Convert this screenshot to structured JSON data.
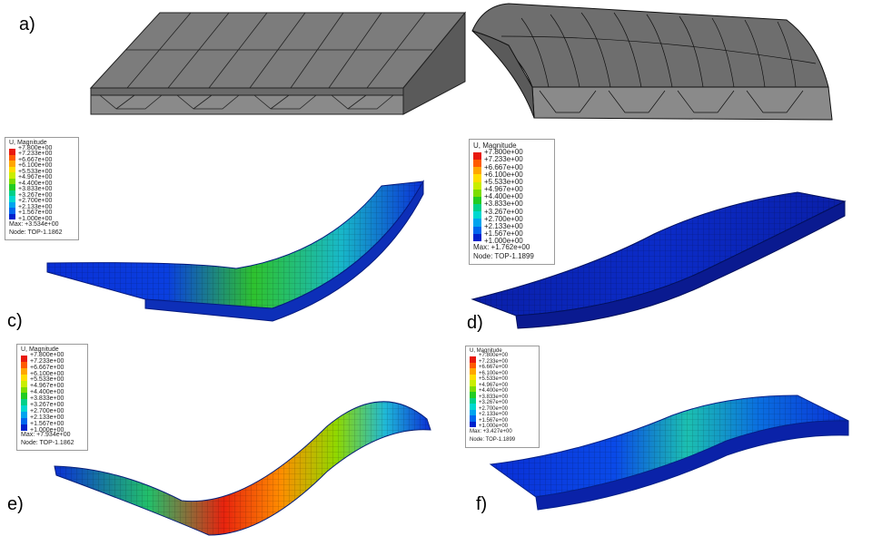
{
  "panels": [
    {
      "label": "a)"
    },
    {
      "label": "b)"
    },
    {
      "label": "c)"
    },
    {
      "label": "d)"
    },
    {
      "label": "e)"
    },
    {
      "label": "f)"
    }
  ],
  "legend_title": "U, Magnitude",
  "legend_values": [
    "+7.800e+00",
    "+7.233e+00",
    "+6.667e+00",
    "+6.100e+00",
    "+5.533e+00",
    "+4.967e+00",
    "+4.400e+00",
    "+3.833e+00",
    "+3.267e+00",
    "+2.700e+00",
    "+2.133e+00",
    "+1.567e+00",
    "+1.000e+00"
  ],
  "legend_colors": [
    "#e8190d",
    "#ff5a00",
    "#ffa600",
    "#ffdd00",
    "#c9ee00",
    "#7cdd00",
    "#22cc22",
    "#00d088",
    "#00d8d0",
    "#00a4ee",
    "#0066ee",
    "#0022cc"
  ],
  "legends": [
    {
      "panel": "c",
      "max": "Max: +3.534e+00",
      "node": "Node: TOP-1.1862"
    },
    {
      "panel": "d",
      "max": "Max: +1.762e+00",
      "node": "Node: TOP-1.1899"
    },
    {
      "panel": "e",
      "max": "Max: +7.934e+00",
      "node": "Node: TOP-1.1862"
    },
    {
      "panel": "f",
      "max": "Max: +3.427e+00",
      "node": "Node: TOP-1.1899"
    }
  ]
}
